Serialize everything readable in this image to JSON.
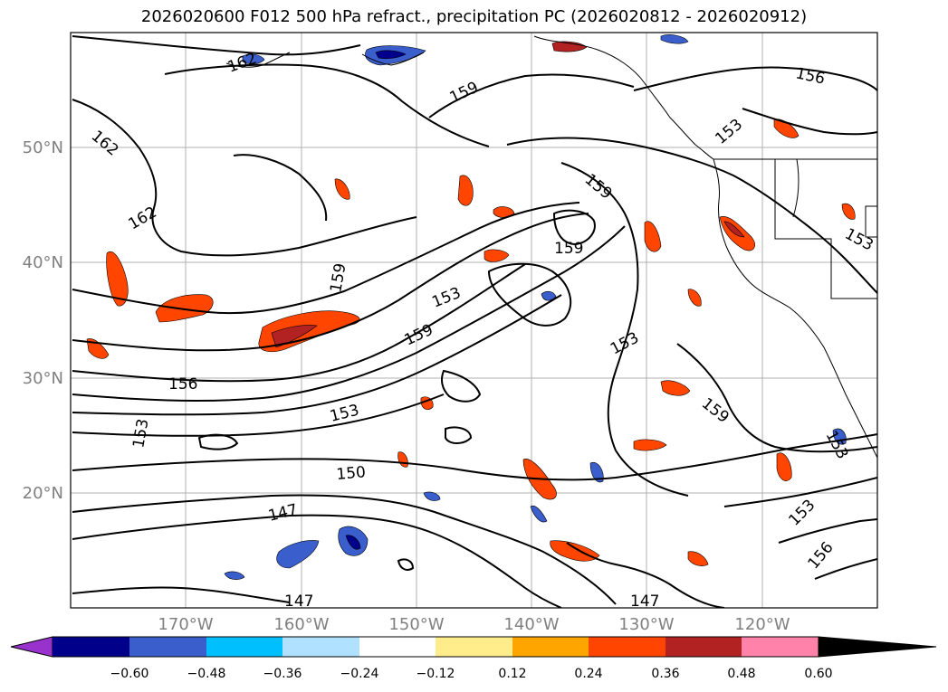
{
  "title": "2026020600 F012 500 hPa refract., precipitation PC (2026020812 - 2026020912)",
  "lat_labels": [
    "50°N",
    "40°N",
    "30°N",
    "20°N"
  ],
  "lon_labels": [
    "170°W",
    "160°W",
    "150°W",
    "140°W",
    "130°W",
    "120°W"
  ],
  "colorbar": {
    "ticks": [
      "−0.60",
      "−0.48",
      "−0.36",
      "−0.24",
      "−0.12",
      "0.12",
      "0.24",
      "0.36",
      "0.48",
      "0.60"
    ],
    "colors": [
      "#9932cc",
      "#00008b",
      "#3a5fcd",
      "#00bfff",
      "#b0e2ff",
      "#ffffff",
      "#ffec8b",
      "#ffa500",
      "#ff4500",
      "#b22222",
      "#ff82ab"
    ]
  },
  "contour_labels": [
    "162",
    "162",
    "162",
    "159",
    "159",
    "159",
    "159",
    "159",
    "159",
    "156",
    "156",
    "156",
    "153",
    "153",
    "153",
    "153",
    "153",
    "153",
    "153",
    "153",
    "150",
    "147",
    "147",
    "147"
  ]
}
